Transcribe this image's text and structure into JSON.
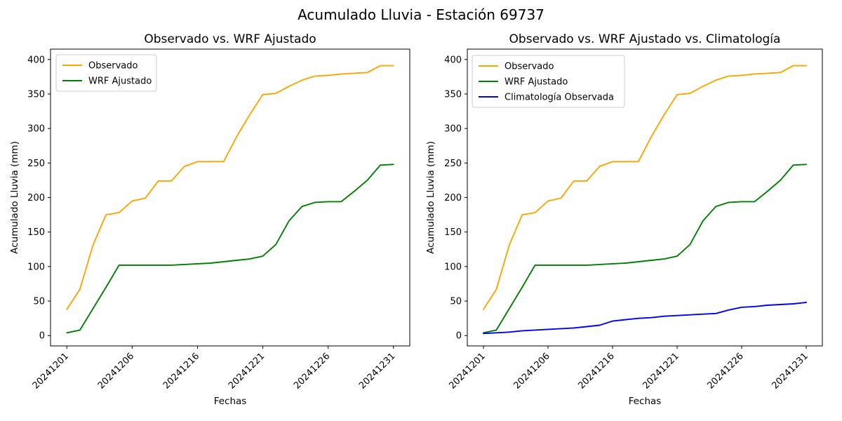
{
  "figure": {
    "suptitle": "Acumulado Lluvia - Estación 69737",
    "background": "#ffffff"
  },
  "colors": {
    "observado": "#FFA500",
    "wrf_ajustado": "#008000",
    "climatologia": "#0000FF",
    "legend_border": "#cccccc",
    "axis": "#000000"
  },
  "chart_data": [
    {
      "id": "chart-observado-wrf",
      "type": "line",
      "title": "Observado vs. WRF Ajustado",
      "xlabel": "Fechas",
      "ylabel": "Acumulado Lluvia (mm)",
      "grid": false,
      "legend_position": "upper left",
      "n_points": 26,
      "ylim": [
        -15,
        415
      ],
      "yticks": [
        0,
        50,
        100,
        150,
        200,
        250,
        300,
        350,
        400
      ],
      "xtick_positions": [
        0,
        5,
        10,
        15,
        20,
        25
      ],
      "xtick_labels": [
        "20241201",
        "20241206",
        "20241216",
        "20241221",
        "20241226",
        "20241231"
      ],
      "series": [
        {
          "name": "Observado",
          "color": "#FFA500",
          "values": [
            38,
            67,
            131,
            175,
            178,
            195,
            199,
            224,
            224,
            245,
            252,
            252,
            252,
            288,
            320,
            349,
            351,
            361,
            370,
            376,
            377,
            379,
            380,
            381,
            391,
            391
          ]
        },
        {
          "name": "WRF Ajustado",
          "color": "#008000",
          "values": [
            4,
            8,
            39,
            70,
            102,
            102,
            102,
            102,
            102,
            103,
            104,
            105,
            107,
            109,
            111,
            115,
            132,
            166,
            187,
            193,
            194,
            194,
            209,
            225,
            247,
            248
          ]
        }
      ]
    },
    {
      "id": "chart-observado-wrf-climatologia",
      "type": "line",
      "title": "Observado vs. WRF Ajustado vs. Climatología",
      "xlabel": "Fechas",
      "ylabel": "Acumulado Lluvia (mm)",
      "grid": false,
      "legend_position": "upper left",
      "n_points": 26,
      "ylim": [
        -15,
        415
      ],
      "yticks": [
        0,
        50,
        100,
        150,
        200,
        250,
        300,
        350,
        400
      ],
      "xtick_positions": [
        0,
        5,
        10,
        15,
        20,
        25
      ],
      "xtick_labels": [
        "20241201",
        "20241206",
        "20241216",
        "20241221",
        "20241226",
        "20241231"
      ],
      "series": [
        {
          "name": "Observado",
          "color": "#FFA500",
          "values": [
            38,
            67,
            131,
            175,
            178,
            195,
            199,
            224,
            224,
            245,
            252,
            252,
            252,
            288,
            320,
            349,
            351,
            361,
            370,
            376,
            377,
            379,
            380,
            381,
            391,
            391
          ]
        },
        {
          "name": "WRF Ajustado",
          "color": "#008000",
          "values": [
            4,
            8,
            39,
            70,
            102,
            102,
            102,
            102,
            102,
            103,
            104,
            105,
            107,
            109,
            111,
            115,
            132,
            166,
            187,
            193,
            194,
            194,
            209,
            225,
            247,
            248
          ]
        },
        {
          "name": "Climatología Observada",
          "color": "#0000FF",
          "values": [
            3,
            4,
            5,
            7,
            8,
            9,
            10,
            11,
            13,
            15,
            21,
            23,
            25,
            26,
            28,
            29,
            30,
            31,
            32,
            37,
            41,
            42,
            44,
            45,
            46,
            48
          ]
        }
      ]
    }
  ]
}
